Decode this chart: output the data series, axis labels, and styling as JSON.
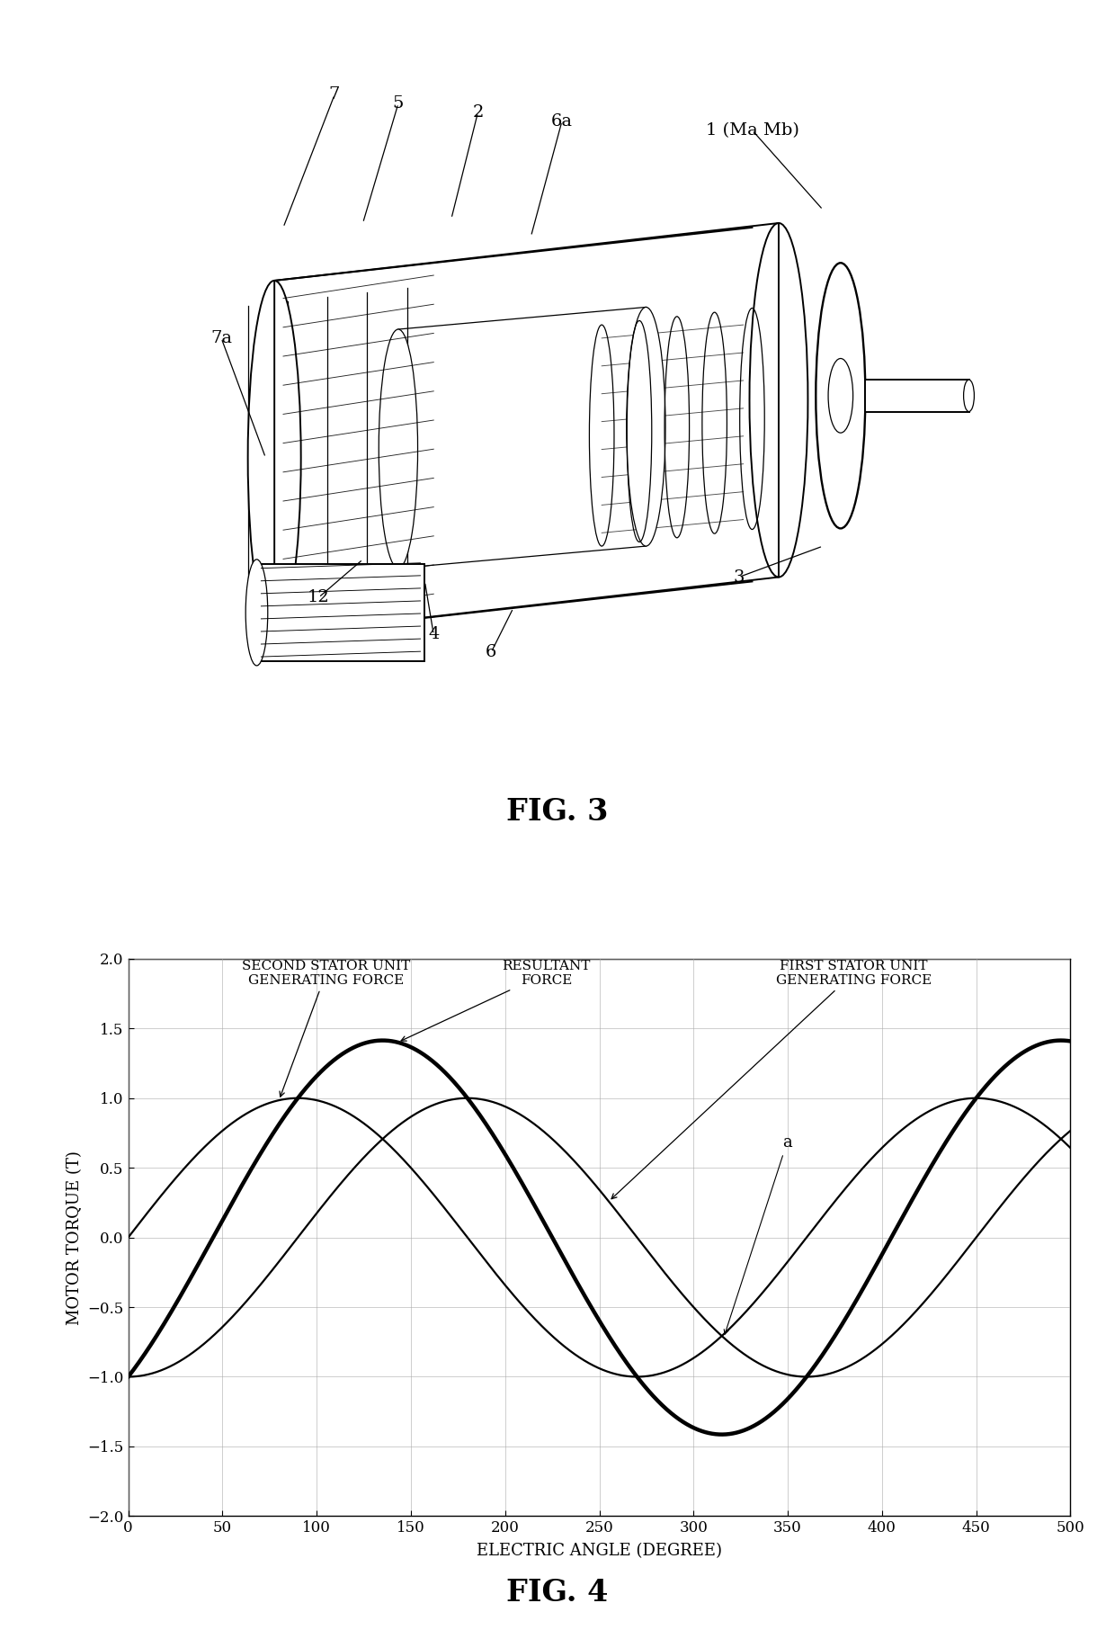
{
  "fig3_title": "FIG. 3",
  "fig4_title": "FIG. 4",
  "graph_xlabel": "ELECTRIC ANGLE (DEGREE)",
  "graph_ylabel": "MOTOR TORQUE (T)",
  "xlim": [
    0,
    500
  ],
  "ylim": [
    -2,
    2
  ],
  "xticks": [
    0,
    50,
    100,
    150,
    200,
    250,
    300,
    350,
    400,
    450,
    500
  ],
  "yticks": [
    -2,
    -1.5,
    -1,
    -0.5,
    0,
    0.5,
    1,
    1.5,
    2
  ],
  "curve_color": "#000000",
  "background_color": "#ffffff",
  "label_second_stator": "SECOND STATOR UNIT\nGENERATING FORCE",
  "label_resultant": "RESULTANT\nFORCE",
  "label_first_stator": "FIRST STATOR UNIT\nGENERATING FORCE",
  "label_a": "a",
  "thin_lw": 1.6,
  "thick_lw": 3.2,
  "grid_color": "#aaaaaa",
  "grid_lw": 0.5,
  "ann_fontsize": 11,
  "tick_fontsize": 12,
  "axis_fontsize": 13,
  "fig_label_fontsize": 24
}
